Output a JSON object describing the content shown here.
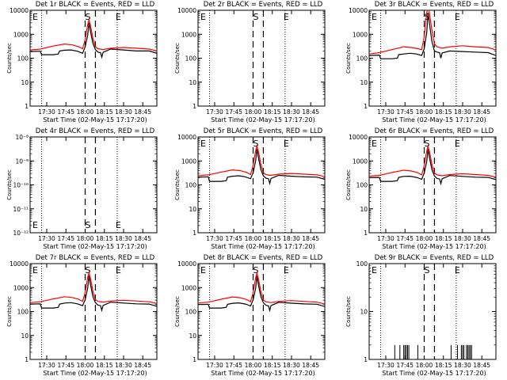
{
  "panel_titles": [
    "Det 1r BLACK = Events, RED = LLD",
    "Det 2r BLACK = Events, RED = LLD",
    "Det 3r BLACK = Events, RED = LLD",
    "Det 4r BLACK = Events, RED = LLD",
    "Det 5r BLACK = Events, RED = LLD",
    "Det 6r BLACK = Events, RED = LLD",
    "Det 7r BLACK = Events, RED = LLD",
    "Det 8r BLACK = Events, RED = LLD",
    "Det 9r BLACK = Events, RED = LLD"
  ],
  "ylabel": "Counts/sec",
  "xlabel": "Start Time (02-May-15 17:17:20)",
  "marker_labels": [
    "E",
    "S",
    "S",
    "E"
  ],
  "x_ticks": [
    "17:30",
    "17:45",
    "18:00",
    "18:15",
    "18:30",
    "18:45"
  ],
  "y_ticks_log": [
    "1",
    "10",
    "100",
    "1000",
    "10000"
  ],
  "y_ticks_tiny": [
    "10⁻¹²",
    "10⁻¹¹",
    "10⁻¹⁰",
    "10⁻⁹",
    "10⁻⁸"
  ],
  "colors": {
    "events": "#000000",
    "lld": "#ff0000",
    "axis": "#000000",
    "background": "#ffffff"
  },
  "chart_data": [
    {
      "type": "line",
      "title": "Det 1r BLACK = Events, RED = LLD",
      "xlabel": "Start Time (02-May-15 17:17:20)",
      "ylabel": "Counts/sec",
      "y_scale": "log",
      "ylim": [
        1,
        10000
      ],
      "xlim": [
        "17:17",
        "18:56"
      ],
      "markers": {
        "dotted": [
          "17:26",
          "18:25"
        ],
        "dashed": [
          "18:00",
          "18:08"
        ]
      },
      "series": [
        {
          "name": "BLACK = Events",
          "x": [
            "17:17",
            "17:25",
            "17:26",
            "17:35",
            "17:39",
            "17:40",
            "17:44",
            "17:49",
            "17:54",
            "17:58",
            "18:00",
            "18:02",
            "18:03",
            "18:04",
            "18:06",
            "18:08",
            "18:10",
            "18:12",
            "18:13",
            "18:14",
            "18:20",
            "18:30",
            "18:40",
            "18:50",
            "18:56"
          ],
          "values": [
            190,
            195,
            140,
            140,
            150,
            200,
            215,
            220,
            195,
            160,
            300,
            900,
            3000,
            1400,
            420,
            230,
            180,
            170,
            110,
            175,
            240,
            220,
            200,
            200,
            160
          ]
        },
        {
          "name": "RED = LLD",
          "x": [
            "17:17",
            "17:25",
            "17:35",
            "17:44",
            "17:50",
            "17:55",
            "17:58",
            "18:00",
            "18:02",
            "18:03",
            "18:04",
            "18:06",
            "18:08",
            "18:10",
            "18:14",
            "18:20",
            "18:30",
            "18:40",
            "18:50",
            "18:56"
          ],
          "values": [
            220,
            240,
            320,
            390,
            360,
            300,
            250,
            600,
            2500,
            4000,
            2500,
            700,
            300,
            250,
            230,
            260,
            280,
            260,
            240,
            200
          ]
        }
      ]
    },
    {
      "type": "line",
      "title": "Det 2r BLACK = Events, RED = LLD",
      "xlabel": "Start Time (02-May-15 17:17:20)",
      "ylabel": "Counts/sec",
      "y_scale": "log",
      "ylim": [
        1,
        10000
      ],
      "xlim": [
        "17:17",
        "18:56"
      ],
      "markers": {
        "dotted": [
          "17:26",
          "18:25"
        ],
        "dashed": [
          "18:00",
          "18:08"
        ]
      },
      "series": []
    },
    {
      "type": "line",
      "title": "Det 3r BLACK = Events, RED = LLD",
      "xlabel": "Start Time (02-May-15 17:17:20)",
      "ylabel": "Counts/sec",
      "y_scale": "log",
      "ylim": [
        1,
        10000
      ],
      "xlim": [
        "17:17",
        "18:56"
      ],
      "markers": {
        "dotted": [
          "17:26",
          "18:25"
        ],
        "dashed": [
          "18:00",
          "18:08"
        ]
      },
      "series": [
        {
          "name": "BLACK = Events",
          "x": [
            "17:17",
            "17:25",
            "17:26",
            "17:35",
            "17:39",
            "17:40",
            "17:44",
            "17:49",
            "17:54",
            "17:58",
            "18:00",
            "18:02",
            "18:03",
            "18:04",
            "18:06",
            "18:08",
            "18:10",
            "18:12",
            "18:13",
            "18:14",
            "18:20",
            "18:30",
            "18:40",
            "18:50",
            "18:56"
          ],
          "values": [
            130,
            135,
            95,
            95,
            100,
            140,
            150,
            160,
            150,
            130,
            250,
            1200,
            8000,
            3000,
            500,
            200,
            180,
            170,
            100,
            165,
            200,
            190,
            180,
            170,
            130
          ]
        },
        {
          "name": "RED = LLD",
          "x": [
            "17:17",
            "17:25",
            "17:35",
            "17:44",
            "17:50",
            "17:55",
            "17:58",
            "18:00",
            "18:02",
            "18:03",
            "18:04",
            "18:06",
            "18:08",
            "18:10",
            "18:14",
            "18:20",
            "18:30",
            "18:40",
            "18:50",
            "18:56"
          ],
          "values": [
            150,
            170,
            230,
            300,
            280,
            250,
            230,
            800,
            8000,
            15000,
            8000,
            1500,
            400,
            300,
            260,
            300,
            330,
            300,
            280,
            220
          ]
        }
      ]
    },
    {
      "type": "line",
      "title": "Det 4r BLACK = Events, RED = LLD",
      "xlabel": "Start Time (02-May-15 17:17:20)",
      "ylabel": "Counts/sec",
      "y_scale": "log",
      "ylim": [
        1e-12,
        1e-08
      ],
      "xlim": [
        "17:17",
        "18:56"
      ],
      "markers": {
        "dotted": [
          "17:26",
          "18:25"
        ],
        "dashed": [
          "18:00",
          "18:08"
        ]
      },
      "series": []
    },
    {
      "type": "line",
      "title": "Det 5r BLACK = Events, RED = LLD",
      "xlabel": "Start Time (02-May-15 17:17:20)",
      "ylabel": "Counts/sec",
      "y_scale": "log",
      "ylim": [
        1,
        10000
      ],
      "xlim": [
        "17:17",
        "18:56"
      ],
      "markers": {
        "dotted": [
          "17:26",
          "18:25"
        ],
        "dashed": [
          "18:00",
          "18:08"
        ]
      },
      "series": [
        {
          "name": "BLACK = Events",
          "x": [
            "17:17",
            "17:25",
            "17:26",
            "17:35",
            "17:39",
            "17:40",
            "17:44",
            "17:49",
            "17:54",
            "17:58",
            "18:00",
            "18:02",
            "18:03",
            "18:04",
            "18:06",
            "18:08",
            "18:10",
            "18:12",
            "18:13",
            "18:14",
            "18:20",
            "18:30",
            "18:40",
            "18:50",
            "18:56"
          ],
          "values": [
            210,
            215,
            140,
            140,
            150,
            210,
            230,
            240,
            215,
            180,
            320,
            1000,
            3200,
            1500,
            440,
            240,
            190,
            180,
            115,
            185,
            250,
            230,
            215,
            210,
            170
          ]
        },
        {
          "name": "RED = LLD",
          "x": [
            "17:17",
            "17:25",
            "17:35",
            "17:44",
            "17:50",
            "17:55",
            "17:58",
            "18:00",
            "18:02",
            "18:03",
            "18:04",
            "18:06",
            "18:08",
            "18:10",
            "18:14",
            "18:20",
            "18:30",
            "18:40",
            "18:50",
            "18:56"
          ],
          "values": [
            240,
            260,
            340,
            420,
            390,
            330,
            270,
            650,
            2700,
            4200,
            2700,
            750,
            320,
            270,
            250,
            280,
            300,
            280,
            260,
            220
          ]
        }
      ]
    },
    {
      "type": "line",
      "title": "Det 6r BLACK = Events, RED = LLD",
      "xlabel": "Start Time (02-May-15 17:17:20)",
      "ylabel": "Counts/sec",
      "y_scale": "log",
      "ylim": [
        1,
        10000
      ],
      "xlim": [
        "17:17",
        "18:56"
      ],
      "markers": {
        "dotted": [
          "17:26",
          "18:25"
        ],
        "dashed": [
          "18:00",
          "18:08"
        ]
      },
      "series": [
        {
          "name": "BLACK = Events",
          "x": [
            "17:17",
            "17:25",
            "17:26",
            "17:35",
            "17:39",
            "17:40",
            "17:44",
            "17:49",
            "17:54",
            "17:58",
            "18:00",
            "18:02",
            "18:03",
            "18:04",
            "18:06",
            "18:08",
            "18:10",
            "18:12",
            "18:13",
            "18:14",
            "18:20",
            "18:30",
            "18:40",
            "18:50",
            "18:56"
          ],
          "values": [
            200,
            205,
            140,
            140,
            150,
            205,
            225,
            230,
            205,
            170,
            310,
            950,
            3100,
            1450,
            430,
            235,
            185,
            175,
            112,
            180,
            245,
            225,
            210,
            205,
            165
          ]
        },
        {
          "name": "RED = LLD",
          "x": [
            "17:17",
            "17:25",
            "17:35",
            "17:44",
            "17:50",
            "17:55",
            "17:58",
            "18:00",
            "18:02",
            "18:03",
            "18:04",
            "18:06",
            "18:08",
            "18:10",
            "18:14",
            "18:20",
            "18:30",
            "18:40",
            "18:50",
            "18:56"
          ],
          "values": [
            230,
            250,
            330,
            410,
            380,
            320,
            260,
            620,
            2600,
            4100,
            2600,
            720,
            310,
            260,
            240,
            270,
            290,
            270,
            250,
            210
          ]
        }
      ]
    },
    {
      "type": "line",
      "title": "Det 7r BLACK = Events, RED = LLD",
      "xlabel": "Start Time (02-May-15 17:17:20)",
      "ylabel": "Counts/sec",
      "y_scale": "log",
      "ylim": [
        1,
        10000
      ],
      "xlim": [
        "17:17",
        "18:56"
      ],
      "markers": {
        "dotted": [
          "17:26",
          "18:25"
        ],
        "dashed": [
          "18:00",
          "18:08"
        ]
      },
      "series": [
        {
          "name": "BLACK = Events",
          "x": [
            "17:17",
            "17:25",
            "17:26",
            "17:35",
            "17:39",
            "17:40",
            "17:44",
            "17:49",
            "17:54",
            "17:58",
            "18:00",
            "18:02",
            "18:03",
            "18:04",
            "18:06",
            "18:08",
            "18:10",
            "18:12",
            "18:13",
            "18:14",
            "18:20",
            "18:30",
            "18:40",
            "18:50",
            "18:56"
          ],
          "values": [
            205,
            210,
            140,
            140,
            150,
            205,
            225,
            235,
            210,
            175,
            310,
            950,
            3100,
            1450,
            430,
            235,
            185,
            175,
            112,
            180,
            245,
            225,
            210,
            205,
            165
          ]
        },
        {
          "name": "RED = LLD",
          "x": [
            "17:17",
            "17:25",
            "17:35",
            "17:44",
            "17:50",
            "17:55",
            "17:58",
            "18:00",
            "18:02",
            "18:03",
            "18:04",
            "18:06",
            "18:08",
            "18:10",
            "18:14",
            "18:20",
            "18:30",
            "18:40",
            "18:50",
            "18:56"
          ],
          "values": [
            235,
            255,
            335,
            415,
            385,
            325,
            265,
            630,
            2650,
            4150,
            2650,
            730,
            315,
            265,
            245,
            275,
            295,
            275,
            255,
            215
          ]
        }
      ]
    },
    {
      "type": "line",
      "title": "Det 8r BLACK = Events, RED = LLD",
      "xlabel": "Start Time (02-May-15 17:17:20)",
      "ylabel": "Counts/sec",
      "y_scale": "log",
      "ylim": [
        1,
        10000
      ],
      "xlim": [
        "17:17",
        "18:56"
      ],
      "markers": {
        "dotted": [
          "17:26",
          "18:25"
        ],
        "dashed": [
          "18:00",
          "18:08"
        ]
      },
      "series": [
        {
          "name": "BLACK = Events",
          "x": [
            "17:17",
            "17:25",
            "17:26",
            "17:35",
            "17:39",
            "17:40",
            "17:44",
            "17:49",
            "17:54",
            "17:58",
            "18:00",
            "18:02",
            "18:03",
            "18:04",
            "18:06",
            "18:08",
            "18:10",
            "18:12",
            "18:13",
            "18:14",
            "18:20",
            "18:30",
            "18:40",
            "18:50",
            "18:56"
          ],
          "values": [
            195,
            200,
            140,
            140,
            150,
            200,
            220,
            230,
            205,
            170,
            305,
            930,
            3050,
            1420,
            425,
            232,
            182,
            172,
            110,
            178,
            242,
            222,
            207,
            202,
            162
          ]
        },
        {
          "name": "RED = LLD",
          "x": [
            "17:17",
            "17:25",
            "17:35",
            "17:44",
            "17:50",
            "17:55",
            "17:58",
            "18:00",
            "18:02",
            "18:03",
            "18:04",
            "18:06",
            "18:08",
            "18:10",
            "18:14",
            "18:20",
            "18:30",
            "18:40",
            "18:50",
            "18:56"
          ],
          "values": [
            225,
            245,
            325,
            405,
            375,
            315,
            255,
            610,
            2550,
            4050,
            2550,
            710,
            305,
            255,
            235,
            265,
            285,
            265,
            245,
            205
          ]
        }
      ]
    },
    {
      "type": "line",
      "title": "Det 9r BLACK = Events, RED = LLD",
      "xlabel": "Start Time (02-May-15 17:17:20)",
      "ylabel": "Counts/sec",
      "y_scale": "log",
      "ylim": [
        1,
        100
      ],
      "xlim": [
        "17:17",
        "18:56"
      ],
      "markers": {
        "dotted": [
          "17:26",
          "18:25"
        ],
        "dashed": [
          "18:00",
          "18:08"
        ]
      },
      "spikes_time": [
        "17:37",
        "17:41",
        "17:44",
        "17:45",
        "17:46",
        "17:47",
        "17:48",
        "17:55",
        "18:21",
        "18:26",
        "18:29",
        "18:30",
        "18:31",
        "18:33",
        "18:34",
        "18:35",
        "18:36",
        "18:37"
      ],
      "spike_value": 2,
      "series": []
    }
  ]
}
